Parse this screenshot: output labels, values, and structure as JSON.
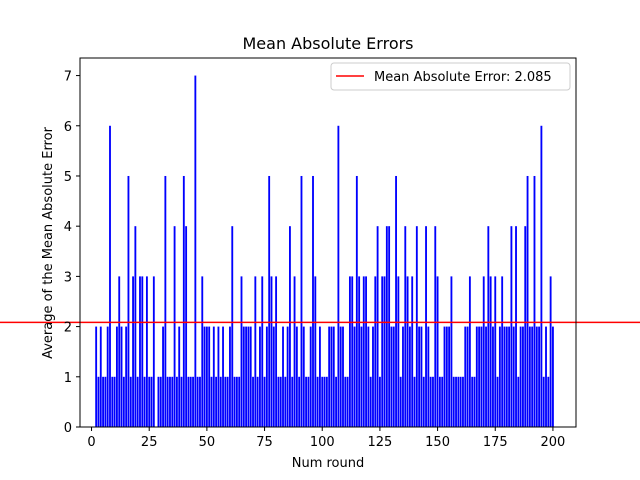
{
  "chart_data": {
    "type": "bar",
    "title": "Mean Absolute Errors",
    "xlabel": "Num round",
    "ylabel": "Average of the Mean Absolute Error",
    "xlim": [
      -5,
      210
    ],
    "ylim": [
      0,
      7.35
    ],
    "xticks": [
      0,
      25,
      50,
      75,
      100,
      125,
      150,
      175,
      200
    ],
    "yticks": [
      0,
      1,
      2,
      3,
      4,
      5,
      6,
      7
    ],
    "bar_color": "#0000ff",
    "reference_line": {
      "y": 2.085,
      "color": "#ff0000",
      "label": "Mean Absolute Error: 2.085"
    },
    "legend_position": "upper right",
    "x": [
      1,
      2,
      3,
      4,
      5,
      6,
      7,
      8,
      9,
      10,
      11,
      12,
      13,
      14,
      15,
      16,
      17,
      18,
      19,
      20,
      21,
      22,
      23,
      24,
      25,
      26,
      27,
      28,
      29,
      30,
      31,
      32,
      33,
      34,
      35,
      36,
      37,
      38,
      39,
      40,
      41,
      42,
      43,
      44,
      45,
      46,
      47,
      48,
      49,
      50,
      51,
      52,
      53,
      54,
      55,
      56,
      57,
      58,
      59,
      60,
      61,
      62,
      63,
      64,
      65,
      66,
      67,
      68,
      69,
      70,
      71,
      72,
      73,
      74,
      75,
      76,
      77,
      78,
      79,
      80,
      81,
      82,
      83,
      84,
      85,
      86,
      87,
      88,
      89,
      90,
      91,
      92,
      93,
      94,
      95,
      96,
      97,
      98,
      99,
      100,
      101,
      102,
      103,
      104,
      105,
      106,
      107,
      108,
      109,
      110,
      111,
      112,
      113,
      114,
      115,
      116,
      117,
      118,
      119,
      120,
      121,
      122,
      123,
      124,
      125,
      126,
      127,
      128,
      129,
      130,
      131,
      132,
      133,
      134,
      135,
      136,
      137,
      138,
      139,
      140,
      141,
      142,
      143,
      144,
      145,
      146,
      147,
      148,
      149,
      150,
      151,
      152,
      153,
      154,
      155,
      156,
      157,
      158,
      159,
      160,
      161,
      162,
      163,
      164,
      165,
      166,
      167,
      168,
      169,
      170,
      171,
      172,
      173,
      174,
      175,
      176,
      177,
      178,
      179,
      180,
      181,
      182,
      183,
      184,
      185,
      186,
      187,
      188,
      189,
      190,
      191,
      192,
      193,
      194,
      195,
      196,
      197,
      198,
      199,
      200
    ],
    "values": [
      0,
      2,
      1,
      2,
      1,
      1,
      2,
      6,
      1,
      1,
      2,
      3,
      2,
      1,
      2,
      5,
      1,
      3,
      4,
      1,
      3,
      3,
      1,
      3,
      1,
      1,
      3,
      0,
      1,
      1,
      2,
      5,
      1,
      1,
      1,
      4,
      1,
      2,
      1,
      5,
      4,
      1,
      1,
      1,
      7,
      1,
      1,
      3,
      2,
      2,
      2,
      1,
      2,
      1,
      2,
      1,
      2,
      1,
      1,
      2,
      4,
      1,
      1,
      1,
      3,
      2,
      2,
      2,
      2,
      1,
      3,
      1,
      2,
      3,
      1,
      2,
      5,
      3,
      2,
      3,
      1,
      1,
      2,
      1,
      2,
      4,
      1,
      3,
      2,
      1,
      5,
      2,
      1,
      1,
      2,
      5,
      3,
      1,
      2,
      1,
      1,
      1,
      2,
      2,
      2,
      1,
      6,
      2,
      2,
      1,
      1,
      3,
      3,
      2,
      5,
      3,
      2,
      3,
      3,
      2,
      1,
      2,
      3,
      4,
      1,
      3,
      3,
      4,
      4,
      2,
      2,
      5,
      3,
      1,
      2,
      4,
      3,
      2,
      3,
      1,
      4,
      2,
      2,
      1,
      4,
      2,
      1,
      1,
      4,
      3,
      1,
      1,
      2,
      2,
      2,
      3,
      1,
      1,
      1,
      1,
      1,
      2,
      2,
      3,
      1,
      1,
      2,
      2,
      2,
      3,
      2,
      4,
      3,
      2,
      3,
      1,
      2,
      3,
      2,
      2,
      2,
      4,
      2,
      4,
      1,
      2,
      2,
      4,
      5,
      2,
      2,
      5,
      2,
      2,
      6,
      1,
      2,
      1,
      3,
      2
    ]
  }
}
